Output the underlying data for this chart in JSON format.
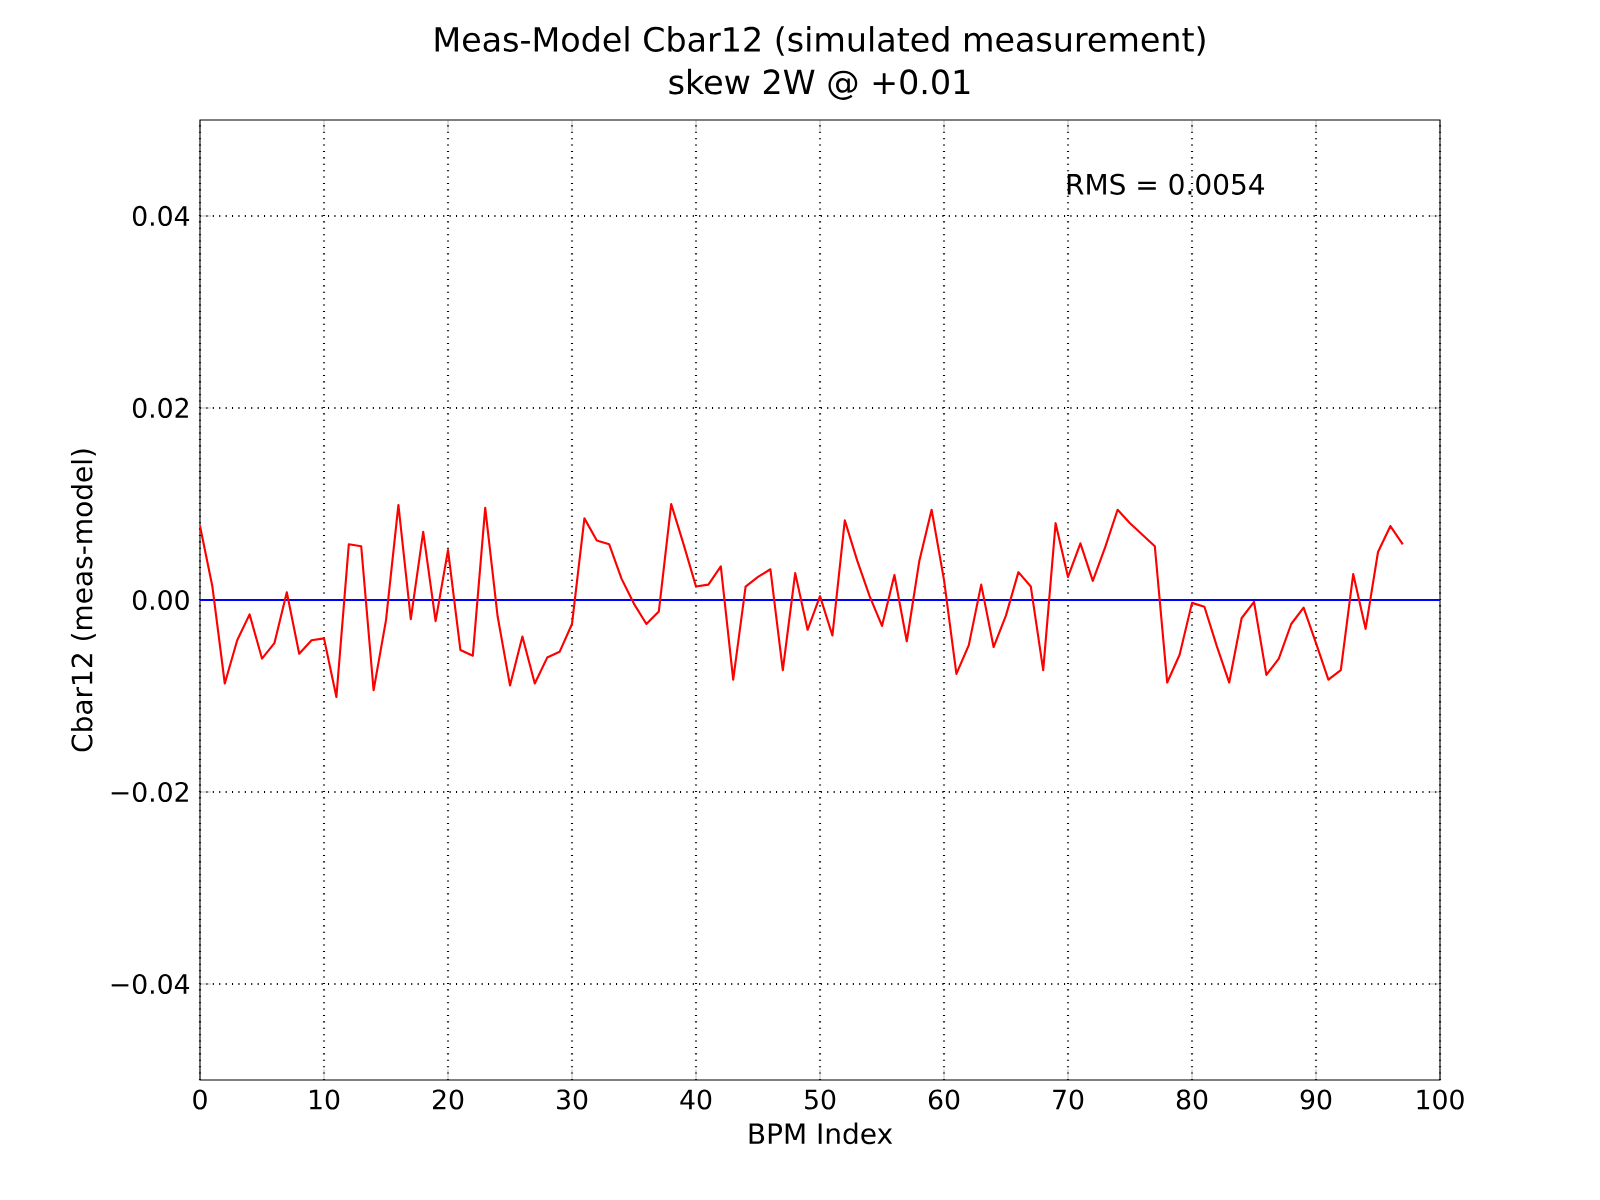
{
  "chart_data": {
    "type": "line",
    "title": "Meas-Model Cbar12 (simulated measurement)",
    "subtitle": "skew 2W @ +0.01",
    "xlabel": "BPM Index",
    "ylabel": "Cbar12 (meas-model)",
    "x": [
      0,
      1,
      2,
      3,
      4,
      5,
      6,
      7,
      8,
      9,
      10,
      11,
      12,
      13,
      14,
      15,
      16,
      17,
      18,
      19,
      20,
      21,
      22,
      23,
      24,
      25,
      26,
      27,
      28,
      29,
      30,
      31,
      32,
      33,
      34,
      35,
      36,
      37,
      38,
      39,
      40,
      41,
      42,
      43,
      44,
      45,
      46,
      47,
      48,
      49,
      50,
      51,
      52,
      53,
      54,
      55,
      56,
      57,
      58,
      59,
      60,
      61,
      62,
      63,
      64,
      65,
      66,
      67,
      68,
      69,
      70,
      71,
      72,
      73,
      74,
      75,
      76,
      77,
      78,
      79,
      80,
      81,
      82,
      83,
      84,
      85,
      86,
      87,
      88,
      89,
      90,
      91,
      92,
      93,
      94,
      95,
      96,
      97
    ],
    "series": [
      {
        "color": "#ff0000",
        "values": [
          0.0077,
          0.0014,
          -0.0087,
          -0.0042,
          -0.0015,
          -0.0061,
          -0.0045,
          0.0008,
          -0.0056,
          -0.0042,
          -0.004,
          -0.0101,
          0.0058,
          0.0056,
          -0.0094,
          -0.0021,
          0.0099,
          -0.002,
          0.0071,
          -0.0022,
          0.0052,
          -0.0052,
          -0.0058,
          0.0096,
          -0.0017,
          -0.0089,
          -0.0038,
          -0.0087,
          -0.006,
          -0.0054,
          -0.0025,
          0.0085,
          0.0062,
          0.0058,
          0.0022,
          -0.0004,
          -0.0025,
          -0.0012,
          0.01,
          0.0058,
          0.0014,
          0.0016,
          0.0035,
          -0.0083,
          0.0014,
          0.0024,
          0.0032,
          -0.0073,
          0.0028,
          -0.0031,
          0.0004,
          -0.0037,
          0.0083,
          0.0041,
          0.0004,
          -0.0027,
          0.0026,
          -0.0043,
          0.004,
          0.0094,
          0.0021,
          -0.0077,
          -0.0047,
          0.0016,
          -0.0049,
          -0.0016,
          0.0029,
          0.0014,
          -0.0073,
          0.008,
          0.0024,
          0.0059,
          0.002,
          0.0055,
          0.0094,
          0.008,
          0.0068,
          0.0056,
          -0.0086,
          -0.0057,
          -0.0003,
          -0.0007,
          -0.0048,
          -0.0086,
          -0.0019,
          -0.0002,
          -0.0078,
          -0.0061,
          -0.0025,
          -0.0008,
          -0.0045,
          -0.0083,
          -0.0073,
          0.0027,
          -0.003,
          0.005,
          0.0077,
          0.0058
        ]
      }
    ],
    "xlim": [
      0,
      100
    ],
    "ylim": [
      -0.05,
      0.05
    ],
    "xticks": [
      0,
      10,
      20,
      30,
      40,
      50,
      60,
      70,
      80,
      90,
      100
    ],
    "yticks": [
      {
        "value": -0.04,
        "label": "−0.04"
      },
      {
        "value": -0.02,
        "label": "−0.02"
      },
      {
        "value": 0,
        "label": "0.00"
      },
      {
        "value": 0.02,
        "label": "0.02"
      },
      {
        "value": 0.04,
        "label": "0.04"
      }
    ],
    "ref_lines": [
      {
        "axis": "y",
        "value": 0,
        "color": "#0000ff"
      }
    ],
    "annotations": [
      "RMS = 0.0054"
    ],
    "grid": true,
    "marker": "none",
    "line_style": "solid"
  }
}
